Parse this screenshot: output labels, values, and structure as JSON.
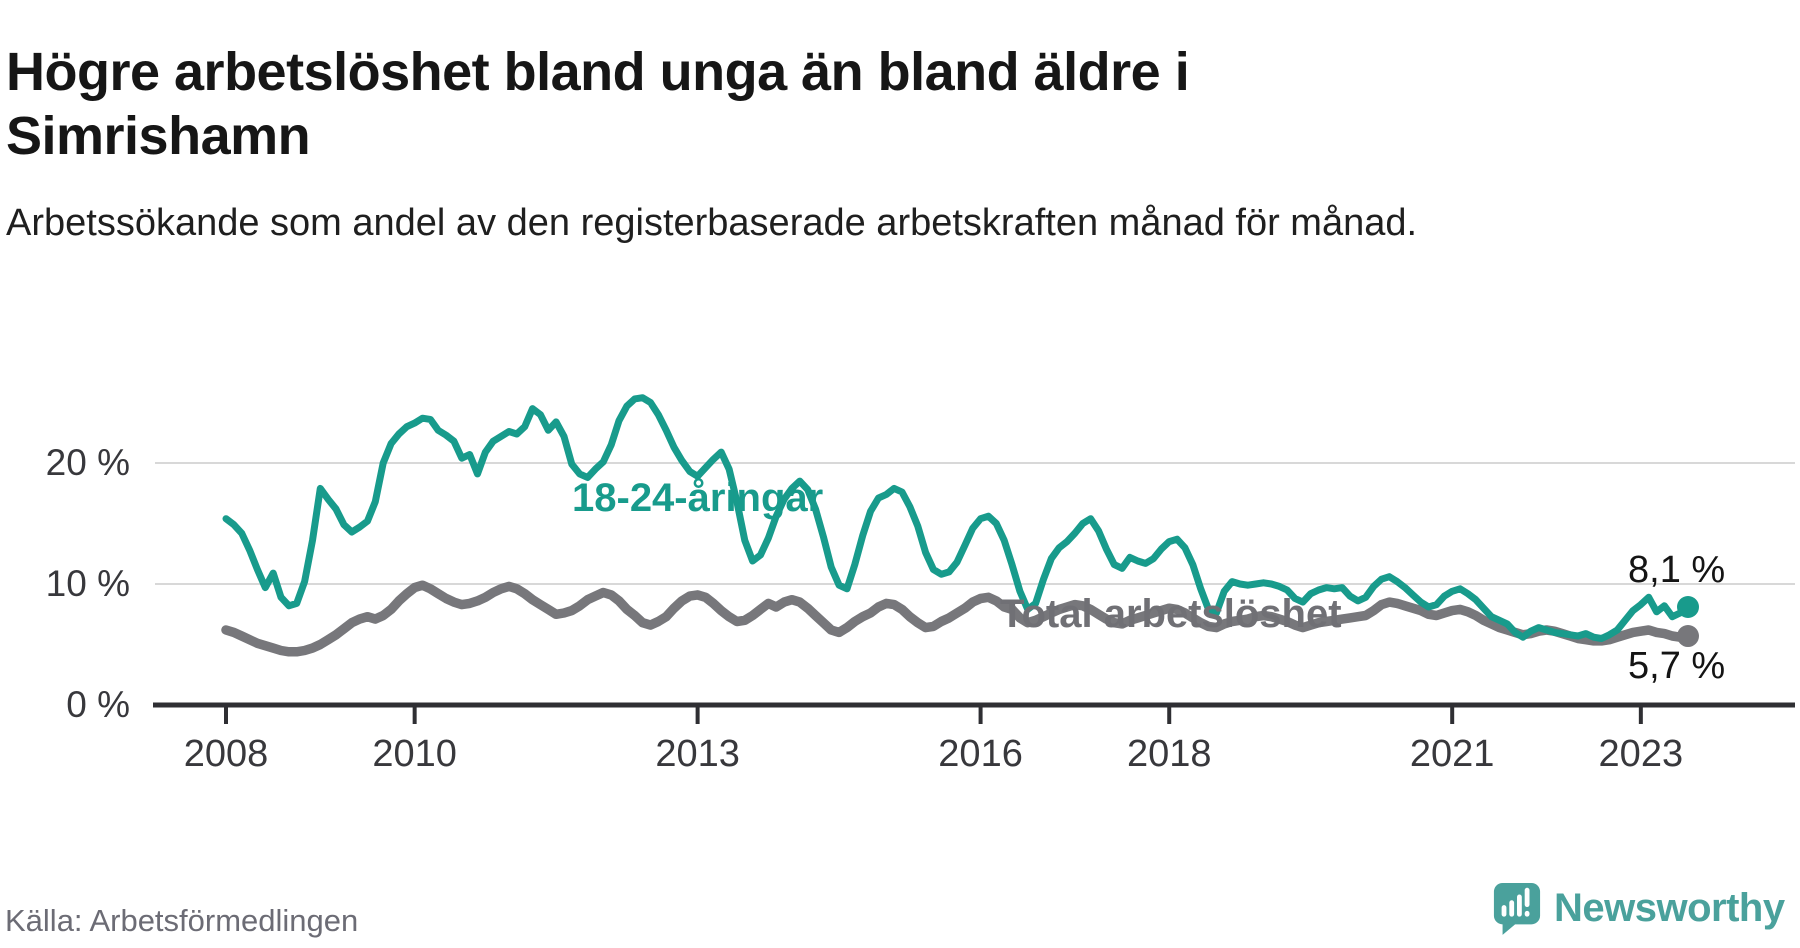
{
  "header": {
    "title": "Högre arbetslöshet bland unga än bland äldre i Simrishamn",
    "subtitle": "Arbetssökande som andel av den registerbaserade arbetskraften månad för månad."
  },
  "footer": {
    "source": "Källa: Arbetsförmedlingen",
    "brand": "Newsworthy"
  },
  "colors": {
    "youth": "#189b8c",
    "total": "#77777b",
    "grid": "#d8d8d8",
    "axis": "#2f2f33",
    "logo": "#4aa19c"
  },
  "chart_data": {
    "type": "line",
    "title": "Högre arbetslöshet bland unga än bland äldre i Simrishamn",
    "subtitle": "Arbetssökande som andel av den registerbaserade arbetskraften månad för månad.",
    "x_start": "2008-01",
    "x_end": "2023-07",
    "x_frequency": "monthly",
    "x_tick_years": [
      2008,
      2010,
      2013,
      2016,
      2018,
      2021,
      2023
    ],
    "y_ticks": [
      {
        "value": 20,
        "label": "20 %"
      },
      {
        "value": 10,
        "label": "10 %"
      },
      {
        "value": 0,
        "label": "0 %"
      }
    ],
    "ylim": [
      0,
      27
    ],
    "grid": "horizontal-only",
    "series": [
      {
        "name": "18-24-åringar",
        "end_label": "8,1 %",
        "end_value": 8.1,
        "color": "#189b8c",
        "values": [
          15.4,
          14.9,
          14.2,
          12.8,
          11.2,
          9.7,
          10.9,
          8.9,
          8.2,
          8.4,
          10.2,
          13.6,
          17.9,
          17.0,
          16.2,
          14.9,
          14.3,
          14.7,
          15.2,
          16.8,
          20.0,
          21.6,
          22.4,
          23.0,
          23.3,
          23.7,
          23.6,
          22.7,
          22.3,
          21.8,
          20.4,
          20.7,
          19.1,
          20.9,
          21.8,
          22.2,
          22.6,
          22.4,
          23.0,
          24.5,
          24.0,
          22.7,
          23.4,
          22.2,
          19.9,
          19.1,
          18.8,
          19.5,
          20.1,
          21.5,
          23.5,
          24.7,
          25.3,
          25.4,
          25.0,
          24.0,
          22.7,
          21.3,
          20.2,
          19.3,
          18.9,
          19.6,
          20.3,
          20.9,
          19.5,
          16.8,
          13.6,
          11.9,
          12.4,
          13.8,
          15.6,
          17.0,
          17.9,
          18.5,
          17.8,
          16.2,
          13.9,
          11.4,
          9.9,
          9.6,
          11.6,
          14.0,
          16.0,
          17.1,
          17.4,
          17.9,
          17.6,
          16.4,
          14.8,
          12.6,
          11.2,
          10.8,
          11.0,
          11.8,
          13.2,
          14.6,
          15.4,
          15.6,
          15.0,
          13.6,
          11.6,
          9.4,
          7.9,
          8.4,
          10.4,
          12.1,
          13.0,
          13.5,
          14.2,
          15.0,
          15.4,
          14.4,
          12.9,
          11.6,
          11.3,
          12.2,
          11.9,
          11.7,
          12.1,
          12.9,
          13.5,
          13.7,
          13.0,
          11.6,
          9.6,
          7.9,
          7.6,
          9.4,
          10.2,
          10.0,
          9.9,
          10.0,
          10.1,
          10.0,
          9.8,
          9.5,
          8.8,
          8.5,
          9.2,
          9.5,
          9.7,
          9.6,
          9.7,
          9.0,
          8.6,
          8.9,
          9.8,
          10.4,
          10.6,
          10.2,
          9.7,
          9.1,
          8.5,
          8.1,
          8.3,
          9.0,
          9.4,
          9.6,
          9.2,
          8.7,
          8.0,
          7.3,
          7.0,
          6.7,
          6.0,
          5.6,
          6.1,
          6.4,
          6.2,
          6.0,
          5.9,
          5.8,
          5.7,
          5.9,
          5.6,
          5.5,
          5.8,
          6.2,
          7.0,
          7.8,
          8.3,
          8.9,
          7.7,
          8.2,
          7.3,
          7.6,
          8.1
        ]
      },
      {
        "name": "Total arbetslöshet",
        "end_label": "5,7 %",
        "end_value": 5.7,
        "color": "#77777b",
        "values": [
          6.2,
          6.0,
          5.7,
          5.4,
          5.1,
          4.9,
          4.7,
          4.5,
          4.4,
          4.4,
          4.5,
          4.7,
          5.0,
          5.4,
          5.8,
          6.3,
          6.8,
          7.1,
          7.3,
          7.1,
          7.4,
          7.9,
          8.6,
          9.2,
          9.7,
          9.9,
          9.6,
          9.2,
          8.8,
          8.5,
          8.3,
          8.4,
          8.6,
          8.9,
          9.3,
          9.6,
          9.8,
          9.6,
          9.2,
          8.7,
          8.3,
          7.9,
          7.5,
          7.6,
          7.8,
          8.2,
          8.7,
          9.0,
          9.3,
          9.1,
          8.6,
          7.9,
          7.4,
          6.8,
          6.6,
          6.9,
          7.3,
          8.0,
          8.6,
          9.0,
          9.1,
          8.9,
          8.4,
          7.8,
          7.3,
          6.9,
          7.0,
          7.4,
          7.9,
          8.4,
          8.1,
          8.5,
          8.7,
          8.5,
          8.0,
          7.4,
          6.8,
          6.2,
          6.0,
          6.4,
          6.9,
          7.3,
          7.6,
          8.1,
          8.4,
          8.3,
          7.9,
          7.3,
          6.8,
          6.4,
          6.5,
          6.9,
          7.2,
          7.6,
          8.0,
          8.5,
          8.8,
          8.9,
          8.6,
          8.1,
          7.9,
          7.2,
          6.8,
          7.0,
          7.3,
          7.6,
          7.9,
          8.1,
          8.3,
          8.2,
          7.9,
          7.5,
          7.1,
          6.8,
          6.7,
          7.0,
          7.2,
          7.4,
          7.6,
          7.8,
          8.0,
          7.9,
          7.6,
          7.2,
          6.8,
          6.5,
          6.4,
          6.7,
          6.9,
          7.0,
          7.1,
          7.3,
          7.4,
          7.3,
          7.1,
          6.9,
          6.6,
          6.4,
          6.6,
          6.8,
          6.9,
          7.0,
          7.1,
          7.2,
          7.3,
          7.4,
          7.8,
          8.3,
          8.5,
          8.4,
          8.2,
          8.0,
          7.8,
          7.5,
          7.4,
          7.6,
          7.8,
          7.9,
          7.7,
          7.4,
          7.0,
          6.7,
          6.4,
          6.2,
          6.0,
          5.8,
          5.9,
          6.1,
          6.2,
          6.1,
          5.9,
          5.7,
          5.5,
          5.4,
          5.3,
          5.3,
          5.4,
          5.6,
          5.8,
          6.0,
          6.1,
          6.2,
          6.0,
          5.9,
          5.7,
          5.6,
          5.7
        ]
      }
    ]
  }
}
